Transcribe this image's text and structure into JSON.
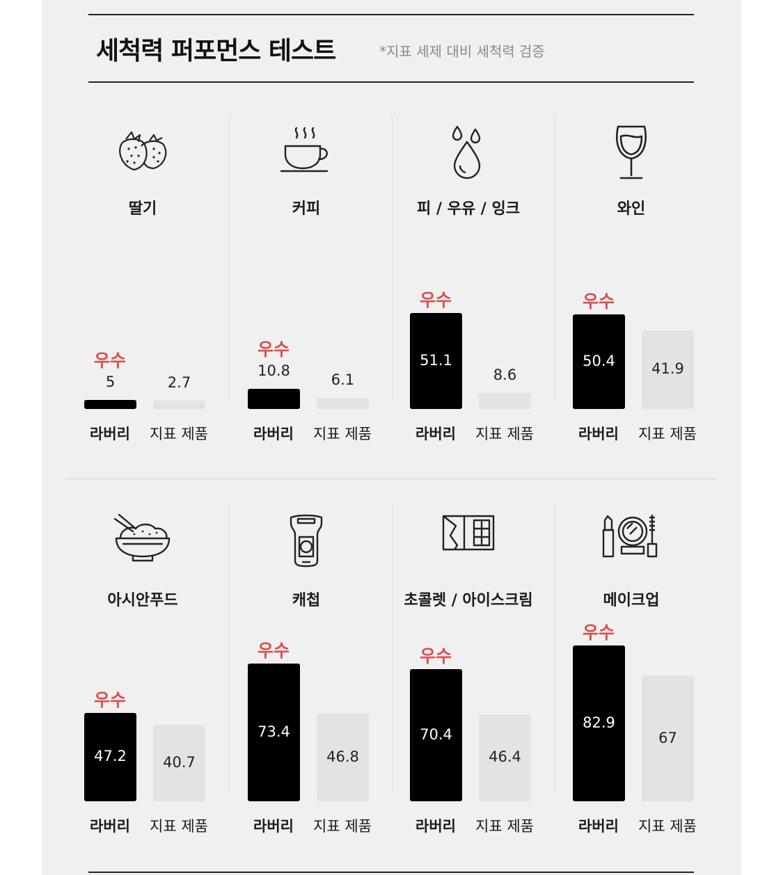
{
  "header": {
    "title": "세척력 퍼포먼스 테스트",
    "subtitle": "*지표 세제 대비 세척력 검증"
  },
  "badge_text": "우수",
  "series_labels": {
    "ours": "라버리",
    "reference": "지표 제품"
  },
  "colors": {
    "ours": "#000000",
    "reference": "#e3e3e3",
    "badge": "#dc4f4f"
  },
  "chart_data": {
    "type": "bar",
    "title": "세척력 퍼포먼스 테스트",
    "subtitle": "*지표 세제 대비 세척력 검증",
    "categories": [
      "딸기",
      "커피",
      "피 / 우유 / 잉크",
      "와인",
      "아시안푸드",
      "캐첩",
      "초콜렛 / 아이스크림",
      "메이크업"
    ],
    "icons": [
      "strawberry-icon",
      "coffee-cup-icon",
      "drops-icon",
      "wine-glass-icon",
      "rice-bowl-icon",
      "ketchup-bottle-icon",
      "chocolate-bar-icon",
      "makeup-icon"
    ],
    "series": [
      {
        "name": "라버리",
        "values": [
          5,
          10.8,
          51.1,
          50.4,
          47.2,
          73.4,
          70.4,
          82.9
        ]
      },
      {
        "name": "지표 제품",
        "values": [
          2.7,
          6.1,
          8.6,
          41.9,
          40.7,
          46.8,
          46.4,
          67
        ]
      }
    ],
    "grid": false,
    "legend": "none"
  }
}
